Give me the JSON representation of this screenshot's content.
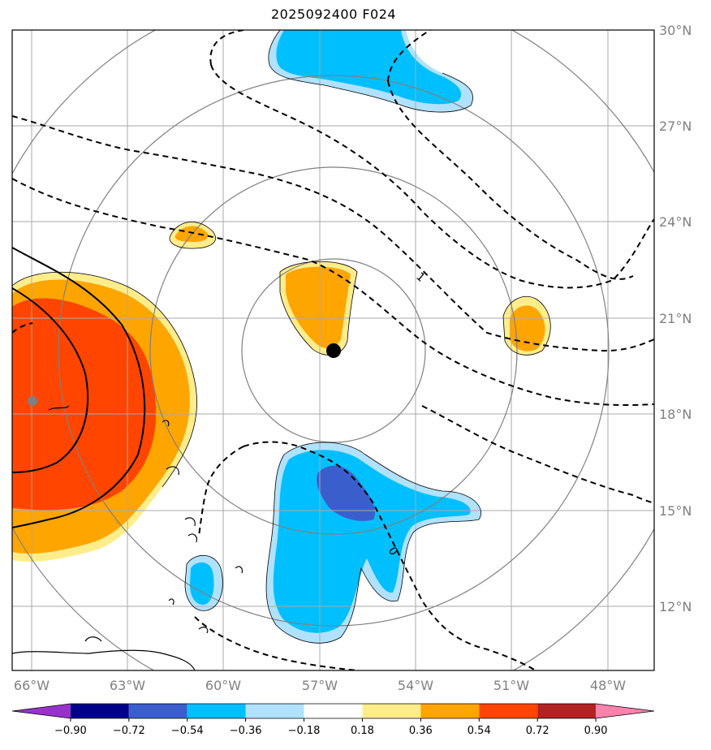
{
  "title": "2025092400 F024",
  "map": {
    "lat_labels": [
      "30°N",
      "27°N",
      "24°N",
      "21°N",
      "18°N",
      "15°N",
      "12°N"
    ],
    "lon_labels": [
      "66°W",
      "63°W",
      "60°W",
      "57°W",
      "54°W",
      "51°W",
      "48°W"
    ],
    "extent": {
      "lon_min": -66.6,
      "lon_max": -46.5,
      "lat_min": 10.0,
      "lat_max": 30.0
    },
    "storm_center": {
      "lon": -56.6,
      "lat": 20.0
    },
    "secondary_center": {
      "lon": -66.0,
      "lat": 18.4
    },
    "range_rings_count": 4,
    "contour_labels": [
      "1",
      "0"
    ],
    "grid": true,
    "line_colors": {
      "grid": "#aaaaaa",
      "rings": "#808080",
      "contour": "#000000"
    }
  },
  "colorbar": {
    "ticks": [
      "−0.90",
      "−0.72",
      "−0.54",
      "−0.36",
      "−0.18",
      "0.18",
      "0.36",
      "0.54",
      "0.72",
      "0.90"
    ],
    "colors": [
      "#9932cc",
      "#00008b",
      "#3a5fcd",
      "#00bfff",
      "#b0e2ff",
      "#ffffff",
      "#ffed8b",
      "#ffa500",
      "#ff4500",
      "#b22222",
      "#ff82ab"
    ],
    "extend": "both"
  }
}
